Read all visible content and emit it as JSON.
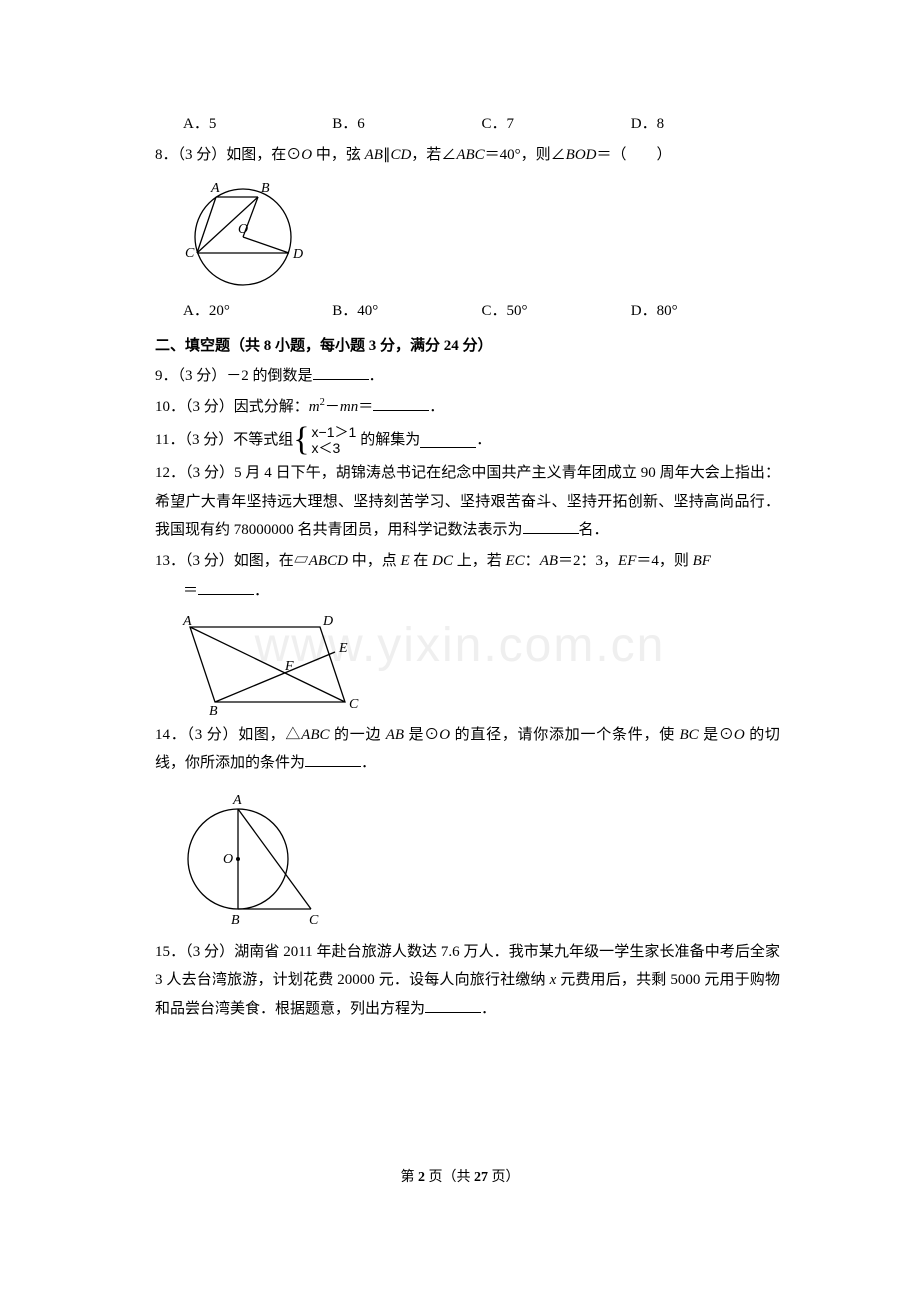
{
  "watermark": "www.yixin.com.cn",
  "q7_options": {
    "A": "A．5",
    "B": "B．6",
    "C": "C．7",
    "D": "D．8"
  },
  "q8": {
    "stem": "8．（3 分）如图，在⊙<span class=\"italic\">O</span> 中，弦 <span class=\"italic\">AB</span>∥<span class=\"italic\">CD</span>，若∠<span class=\"italic\">ABC</span>＝40°，则∠<span class=\"italic\">BOD</span>＝（　　）",
    "options": {
      "A": "A．20°",
      "B": "B．40°",
      "C": "C．50°",
      "D": "D．80°"
    }
  },
  "section2_title": "二、填空题（共 8 小题，每小题 3 分，满分 24 分）",
  "q9": "9．（3 分）－2 的倒数是",
  "q10_pre": "10．（3 分）因式分解：",
  "q10_expr": "<span class=\"italic\">m</span><sup>2</sup>－<span class=\"italic\">mn</span>＝",
  "q11_pre": "11．（3 分）不等式组",
  "q11_line1": "x−1＞1",
  "q11_line2": "x＜3",
  "q11_post": "的解集为",
  "q12": "12．（3 分）5 月 4 日下午，胡锦涛总书记在纪念中国共产主义青年团成立 90 周年大会上指出：希望广大青年坚持远大理想、坚持刻苦学习、坚持艰苦奋斗、坚持开拓创新、坚持高尚品行．我国现有约 78000000 名共青团员，用科学记数法表示为",
  "q12_tail": "名．",
  "q13_pre": "13．（3 分）如图，在▱<span class=\"italic\">ABCD</span> 中，点 <span class=\"italic\">E</span> 在 <span class=\"italic\">DC</span> 上，若 <span class=\"italic\">EC</span>：<span class=\"italic\">AB</span>＝2：3，<span class=\"italic\">EF</span>＝4，则 <span class=\"italic\">BF</span>",
  "q13_eq": "＝",
  "q14_pre": "14．（3 分）如图，△<span class=\"italic\">ABC</span> 的一边 <span class=\"italic\">AB</span> 是⊙<span class=\"italic\">O</span> 的直径，请你添加一个条件，使 <span class=\"italic\">BC</span> 是⊙<span class=\"italic\">O</span> 的切线，你所添加的条件为",
  "q15": "15．（3 分）湖南省 2011 年赴台旅游人数达 7.6 万人．我市某九年级一学生家长准备中考后全家 3 人去台湾旅游，计划花费 20000 元．设每人向旅行社缴纳 <span class=\"italic\">x</span> 元费用后，共剩 5000 元用于购物和品尝台湾美食．根据题意，列出方程为",
  "period": "．",
  "footer_pre": "第 ",
  "footer_page": "2",
  "footer_mid": " 页（共 ",
  "footer_total": "27",
  "footer_post": " 页）",
  "fig_q8": {
    "labels": {
      "A": "A",
      "B": "B",
      "C": "C",
      "D": "D",
      "O": "O"
    },
    "stroke": "#000000",
    "fill": "none"
  },
  "fig_q13": {
    "labels": {
      "A": "A",
      "B": "B",
      "C": "C",
      "D": "D",
      "E": "E",
      "F": "F"
    },
    "stroke": "#000000"
  },
  "fig_q14": {
    "labels": {
      "A": "A",
      "B": "B",
      "C": "C",
      "O": "O"
    },
    "stroke": "#000000"
  }
}
